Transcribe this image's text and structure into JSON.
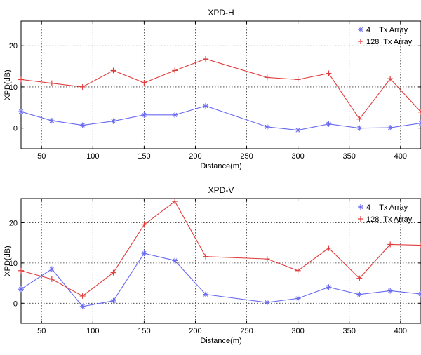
{
  "chart_data": [
    {
      "type": "line",
      "title": "XPD-H",
      "xlabel": "Distance(m)",
      "ylabel": "XPD(dB)",
      "xlim": [
        30,
        420
      ],
      "ylim": [
        -5,
        26
      ],
      "x_ticks": [
        50,
        100,
        150,
        200,
        250,
        300,
        350,
        400
      ],
      "y_ticks": [
        0,
        10,
        20
      ],
      "grid": true,
      "legend_position": "top-right",
      "series": [
        {
          "name": "4    Tx Array",
          "marker": "*",
          "color": "#6a6af0",
          "x": [
            30,
            60,
            90,
            120,
            150,
            180,
            210,
            270,
            300,
            330,
            360,
            390,
            420
          ],
          "y": [
            4,
            1.8,
            0.7,
            1.7,
            3.2,
            3.2,
            5.4,
            0.3,
            -0.5,
            1.0,
            0.0,
            0.1,
            1.2
          ]
        },
        {
          "name": "128  Tx Array",
          "marker": "+",
          "color": "#e03c3c",
          "x": [
            30,
            60,
            90,
            120,
            150,
            180,
            210,
            270,
            300,
            330,
            360,
            390,
            420
          ],
          "y": [
            11.8,
            10.9,
            10.0,
            14.0,
            11.0,
            14.0,
            16.8,
            12.3,
            11.8,
            13.3,
            2.2,
            12.0,
            3.9
          ]
        }
      ]
    },
    {
      "type": "line",
      "title": "XPD-V",
      "xlabel": "Distance(m)",
      "ylabel": "XPD(dB)",
      "xlim": [
        30,
        420
      ],
      "ylim": [
        -5,
        26
      ],
      "x_ticks": [
        50,
        100,
        150,
        200,
        250,
        300,
        350,
        400
      ],
      "y_ticks": [
        0,
        10,
        20
      ],
      "grid": true,
      "legend_position": "top-right",
      "series": [
        {
          "name": "4    Tx Array",
          "marker": "*",
          "color": "#6a6af0",
          "x": [
            30,
            60,
            90,
            120,
            150,
            180,
            210,
            270,
            300,
            330,
            360,
            390,
            420
          ],
          "y": [
            3.5,
            8.5,
            -0.8,
            0.6,
            12.4,
            10.6,
            2.2,
            0.2,
            1.2,
            4.0,
            2.2,
            3.1,
            2.3
          ]
        },
        {
          "name": "128  Tx Array",
          "marker": "+",
          "color": "#e03c3c",
          "x": [
            30,
            60,
            90,
            120,
            150,
            180,
            210,
            270,
            300,
            330,
            360,
            390,
            420
          ],
          "y": [
            8.1,
            6.0,
            1.8,
            7.6,
            19.5,
            25.3,
            11.6,
            11.0,
            8.1,
            13.7,
            6.2,
            14.6,
            14.4
          ]
        }
      ]
    }
  ]
}
